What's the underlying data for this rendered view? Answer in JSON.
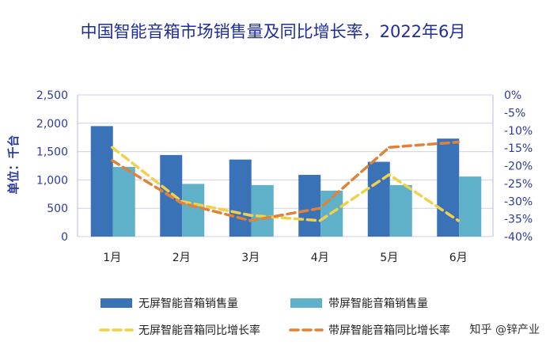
{
  "title": "中国智能音箱市场销售量及同比增长率，2022年6月",
  "watermark": "知乎 @锌产业",
  "colors": {
    "bar_noscreen": "#3a72b8",
    "bar_screen": "#5fb0c9",
    "line_noscreen": "#f1d04a",
    "line_screen": "#e0823a",
    "axis_text": "#2b3aa0",
    "grid": "#cfcfe8"
  },
  "chart_data": {
    "type": "bar",
    "categories": [
      "1月",
      "2月",
      "3月",
      "4月",
      "5月",
      "6月"
    ],
    "ylabel": "单位：千台",
    "ylim": [
      0,
      2500
    ],
    "yticks": [
      "0",
      "500",
      "1,000",
      "1,500",
      "2,000",
      "2,500"
    ],
    "y2lim": [
      -40,
      0
    ],
    "y2ticks": [
      "0%",
      "-5%",
      "-10%",
      "-15%",
      "-20%",
      "-25%",
      "-30%",
      "-35%",
      "-40%"
    ],
    "grid": true,
    "legend_position": "bottom",
    "series": [
      {
        "name": "无屏智能音箱销售量",
        "kind": "bar",
        "axis": "left",
        "values": [
          1950,
          1440,
          1360,
          1090,
          1320,
          1730
        ]
      },
      {
        "name": "带屏智能音箱销售量",
        "kind": "bar",
        "axis": "left",
        "values": [
          1230,
          930,
          910,
          810,
          910,
          1060
        ]
      },
      {
        "name": "无屏智能音箱同比增长率",
        "kind": "line",
        "axis": "right",
        "style": "dashed",
        "values": [
          -14.8,
          -30,
          -34,
          -35.5,
          -22.5,
          -35.5
        ]
      },
      {
        "name": "带屏智能音箱同比增长率",
        "kind": "line",
        "axis": "right",
        "style": "dashed",
        "values": [
          -18.5,
          -30.5,
          -35.5,
          -32,
          -14.8,
          -13.3
        ]
      }
    ]
  }
}
